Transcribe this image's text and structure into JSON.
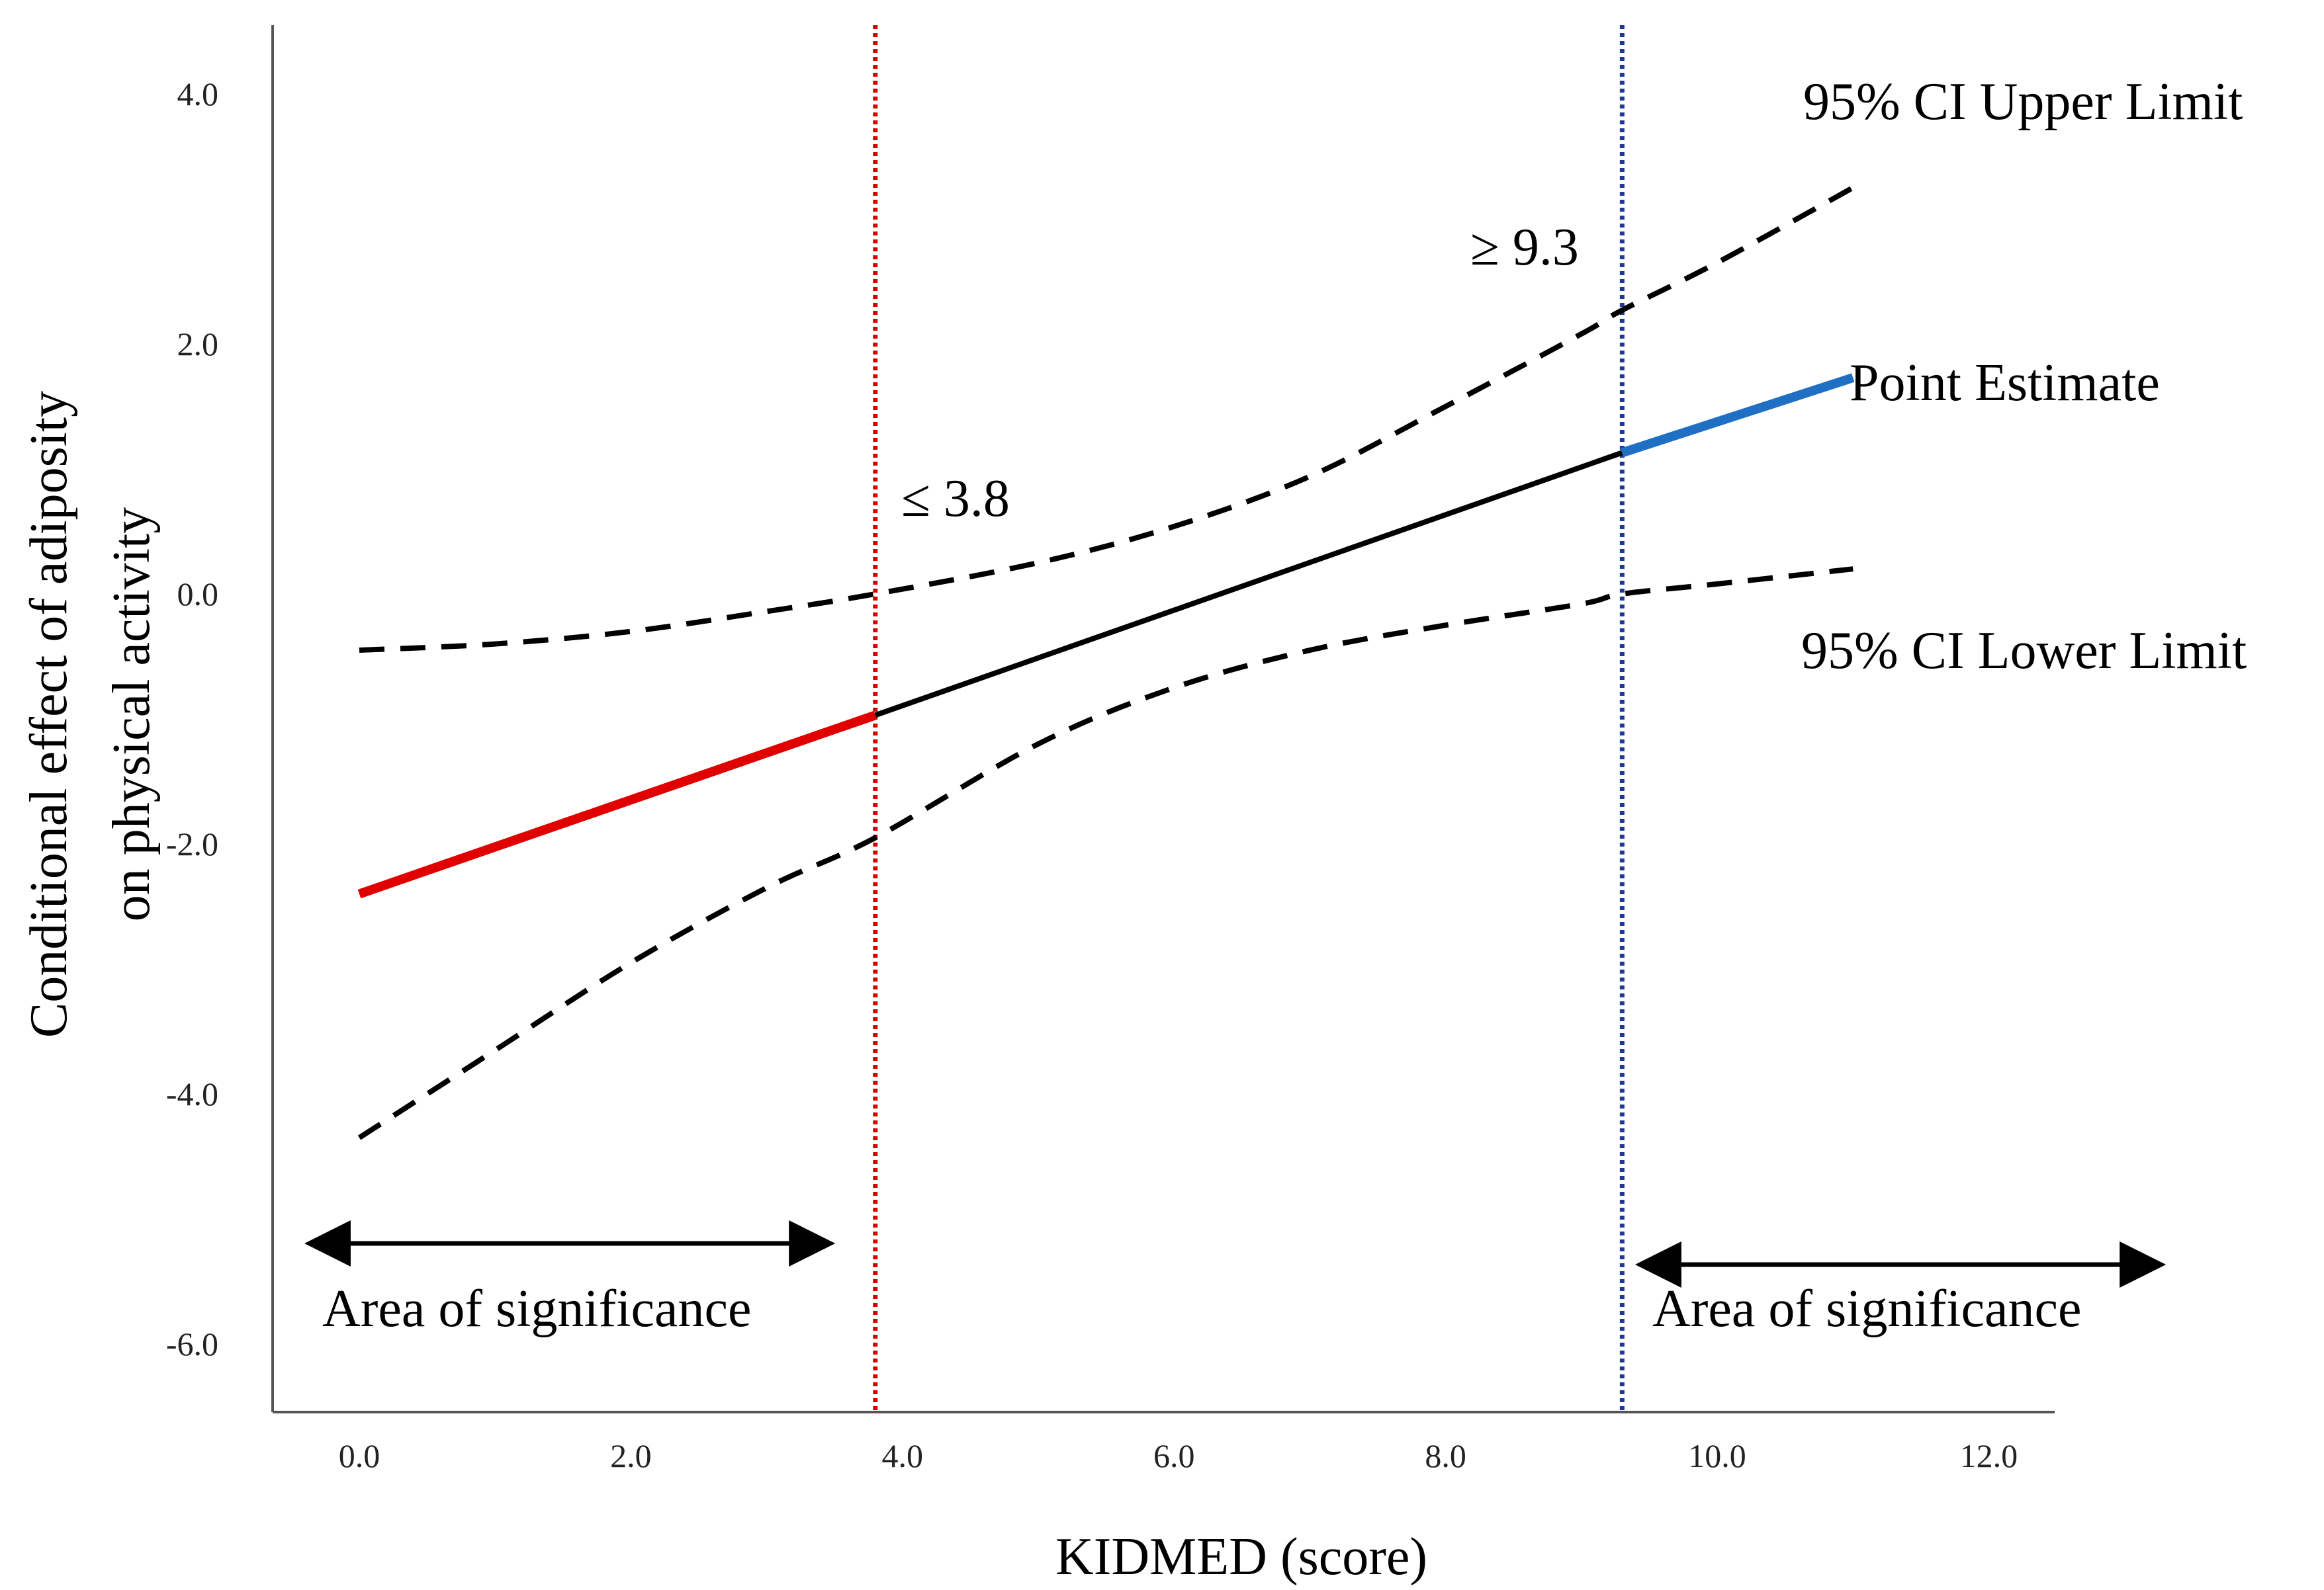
{
  "chart_data": {
    "type": "line",
    "title": "",
    "xlabel": "KIDMED (score)",
    "ylabel": [
      "Conditional effect of adiposity",
      "on physical activity"
    ],
    "xlim": [
      -0.6,
      12.5
    ],
    "ylim": [
      -6.5,
      4.6
    ],
    "xticks": [
      0,
      2,
      4,
      6,
      8,
      10,
      12
    ],
    "xtick_labels": [
      "0.0",
      "2.0",
      "4.0",
      "6.0",
      "8.0",
      "10.0",
      "12.0"
    ],
    "yticks": [
      4,
      2,
      0,
      -2,
      -4,
      -6
    ],
    "ytick_labels": [
      "4.0",
      "2.0",
      "0.0",
      "-2.0",
      "-4.0",
      "-6.0"
    ],
    "series": [
      {
        "name": "Point Estimate",
        "style": "solid",
        "x": [
          0,
          3.8,
          9.3,
          11
        ],
        "y": [
          -2.4,
          -0.97,
          1.13,
          1.73
        ],
        "segment_colors": [
          "#e00000",
          "#000000",
          "#1f6fc4"
        ]
      },
      {
        "name": "95% CI Upper Limit",
        "style": "dashed",
        "x": [
          0,
          1,
          2,
          3,
          3.8,
          5,
          6,
          7,
          8,
          9,
          9.3,
          10,
          11
        ],
        "y": [
          -0.45,
          -0.4,
          -0.3,
          -0.14,
          0,
          0.25,
          0.54,
          0.94,
          1.5,
          2.08,
          2.27,
          2.65,
          3.25
        ]
      },
      {
        "name": "95% CI Lower Limit",
        "style": "dashed",
        "x": [
          0,
          1,
          2,
          3,
          3.8,
          5,
          6,
          7,
          8,
          9,
          9.3,
          10,
          11
        ],
        "y": [
          -4.35,
          -3.65,
          -2.95,
          -2.35,
          -1.95,
          -1.2,
          -0.75,
          -0.45,
          -0.25,
          -0.08,
          0,
          0.08,
          0.2
        ]
      }
    ],
    "thresholds": [
      {
        "x": 3.8,
        "label": "≤ 3.8",
        "color": "#d40000"
      },
      {
        "x": 9.3,
        "label": "≥ 9.3",
        "color": "#1a3a9a"
      }
    ],
    "annotations": {
      "upper": "95% CI Upper Limit",
      "point": "Point Estimate",
      "lower": "95% CI Lower Limit",
      "area_left": "Area of significance",
      "area_right": "Area of significance"
    },
    "significance_ranges": [
      [
        -0.4,
        3.5
      ],
      [
        9.4,
        13.3
      ]
    ]
  }
}
